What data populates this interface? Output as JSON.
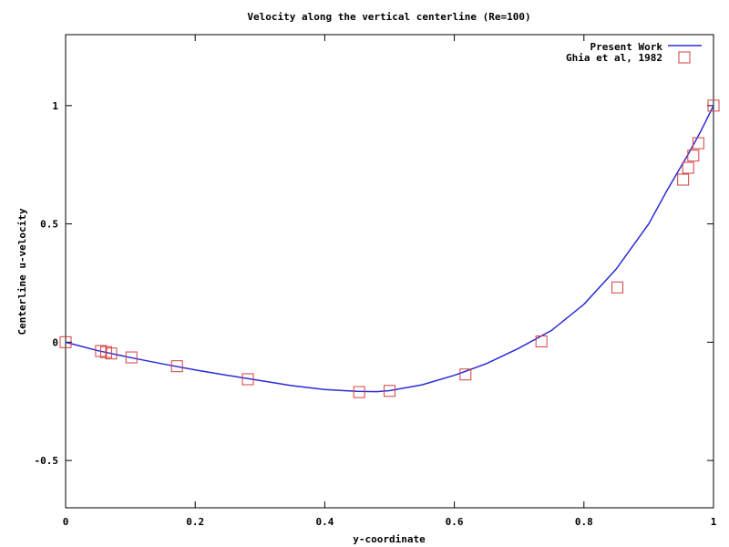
{
  "chart_data": {
    "type": "line",
    "title": "Velocity along the vertical centerline (Re=100)",
    "xlabel": "y-coordinate",
    "ylabel": "Centerline u-velocity",
    "xlim": [
      0,
      1
    ],
    "ylim": [
      -0.7,
      1.3
    ],
    "xticks": [
      0,
      0.2,
      0.4,
      0.6,
      0.8,
      1
    ],
    "xtick_labels": [
      "0",
      "0.2",
      "0.4",
      "0.6",
      "0.8",
      "1"
    ],
    "yticks": [
      -0.5,
      0,
      0.5,
      1
    ],
    "ytick_labels": [
      "-0.5",
      "0",
      "0.5",
      "1"
    ],
    "grid": false,
    "legend_position": "top-right",
    "series": [
      {
        "name": "Present Work",
        "kind": "line",
        "color": "#2b2bd6",
        "x": [
          0,
          0.05,
          0.1,
          0.15,
          0.2,
          0.25,
          0.3,
          0.35,
          0.4,
          0.45,
          0.48,
          0.5,
          0.55,
          0.6,
          0.65,
          0.7,
          0.75,
          0.8,
          0.85,
          0.9,
          0.93,
          0.96,
          0.98,
          1.0
        ],
        "y": [
          0,
          -0.036,
          -0.065,
          -0.092,
          -0.117,
          -0.14,
          -0.162,
          -0.184,
          -0.2,
          -0.208,
          -0.209,
          -0.205,
          -0.18,
          -0.14,
          -0.09,
          -0.025,
          0.05,
          0.16,
          0.31,
          0.5,
          0.65,
          0.79,
          0.89,
          1.0
        ]
      },
      {
        "name": "Ghia et al, 1982",
        "kind": "scatter",
        "marker": "open-square",
        "color": "#d43f3f",
        "x": [
          0.0,
          0.0547,
          0.0625,
          0.0703,
          0.1016,
          0.1719,
          0.2813,
          0.4531,
          0.5,
          0.6172,
          0.7344,
          0.8516,
          0.9531,
          0.9609,
          0.9688,
          0.9766,
          1.0
        ],
        "y": [
          0.0,
          -0.0372,
          -0.0419,
          -0.0477,
          -0.0643,
          -0.1015,
          -0.1566,
          -0.2109,
          -0.2058,
          -0.1364,
          0.0033,
          0.2315,
          0.6872,
          0.7372,
          0.7887,
          0.8412,
          1.0
        ]
      }
    ]
  }
}
